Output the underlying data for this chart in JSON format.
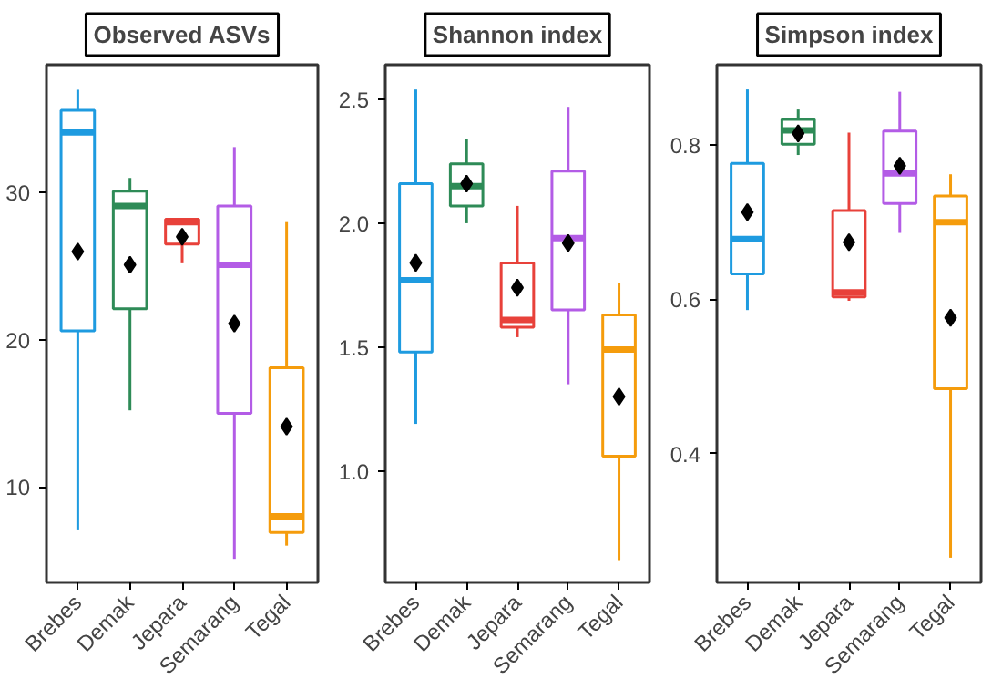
{
  "chart_data": [
    {
      "type": "box",
      "title": "Observed ASVs",
      "categories": [
        "Brebes",
        "Demak",
        "Jepara",
        "Semarang",
        "Tegal"
      ],
      "colors": [
        "#1e9be0",
        "#2e8b57",
        "#e8413a",
        "#b35ce6",
        "#f59c0c"
      ],
      "ylim": [
        3.5,
        38.7
      ],
      "yticks": [
        10,
        20,
        30
      ],
      "grid": false,
      "boxes": [
        {
          "low": 7.1,
          "q1": 20.6,
          "median": 34.1,
          "q3": 35.6,
          "high": 37.0,
          "mean": 26.0
        },
        {
          "low": 15.2,
          "q1": 22.1,
          "median": 29.1,
          "q3": 30.1,
          "high": 31.0,
          "mean": 25.1
        },
        {
          "low": 25.2,
          "q1": 26.5,
          "median": 28.0,
          "q3": 28.2,
          "high": 28.2,
          "mean": 27.0
        },
        {
          "low": 5.1,
          "q1": 15.0,
          "median": 25.1,
          "q3": 29.1,
          "high": 33.1,
          "mean": 21.1
        },
        {
          "low": 6.0,
          "q1": 6.9,
          "median": 8.0,
          "q3": 18.1,
          "high": 28.0,
          "mean": 14.1
        }
      ]
    },
    {
      "type": "box",
      "title": "Shannon index",
      "categories": [
        "Brebes",
        "Demak",
        "Jepara",
        "Semarang",
        "Tegal"
      ],
      "colors": [
        "#1e9be0",
        "#2e8b57",
        "#e8413a",
        "#b35ce6",
        "#f59c0c"
      ],
      "ylim": [
        0.55,
        2.64
      ],
      "yticks": [
        {
          "value": 1,
          "label": "1.0"
        },
        1.5,
        {
          "value": 2,
          "label": "2.0"
        },
        2.5
      ],
      "grid": false,
      "boxes": [
        {
          "low": 1.19,
          "q1": 1.48,
          "median": 1.77,
          "q3": 2.16,
          "high": 2.54,
          "mean": 1.84
        },
        {
          "low": 2.0,
          "q1": 2.07,
          "median": 2.15,
          "q3": 2.24,
          "high": 2.34,
          "mean": 2.16
        },
        {
          "low": 1.54,
          "q1": 1.58,
          "median": 1.61,
          "q3": 1.84,
          "high": 2.07,
          "mean": 1.74
        },
        {
          "low": 1.35,
          "q1": 1.65,
          "median": 1.94,
          "q3": 2.21,
          "high": 2.47,
          "mean": 1.92
        },
        {
          "low": 0.64,
          "q1": 1.06,
          "median": 1.49,
          "q3": 1.63,
          "high": 1.76,
          "mean": 1.3
        }
      ]
    },
    {
      "type": "box",
      "title": "Simpson index",
      "categories": [
        "Brebes",
        "Demak",
        "Jepara",
        "Semarang",
        "Tegal"
      ],
      "colors": [
        "#1e9be0",
        "#2e8b57",
        "#e8413a",
        "#b35ce6",
        "#f59c0c"
      ],
      "ylim": [
        0.233,
        0.904
      ],
      "yticks": [
        0.4,
        0.6,
        0.8
      ],
      "grid": false,
      "boxes": [
        {
          "low": 0.586,
          "q1": 0.633,
          "median": 0.678,
          "q3": 0.776,
          "high": 0.872,
          "mean": 0.713
        },
        {
          "low": 0.787,
          "q1": 0.801,
          "median": 0.819,
          "q3": 0.833,
          "high": 0.846,
          "mean": 0.815
        },
        {
          "low": 0.598,
          "q1": 0.603,
          "median": 0.609,
          "q3": 0.715,
          "high": 0.816,
          "mean": 0.674
        },
        {
          "low": 0.686,
          "q1": 0.724,
          "median": 0.763,
          "q3": 0.818,
          "high": 0.869,
          "mean": 0.773
        },
        {
          "low": 0.265,
          "q1": 0.484,
          "median": 0.7,
          "q3": 0.734,
          "high": 0.762,
          "mean": 0.576
        }
      ]
    }
  ]
}
